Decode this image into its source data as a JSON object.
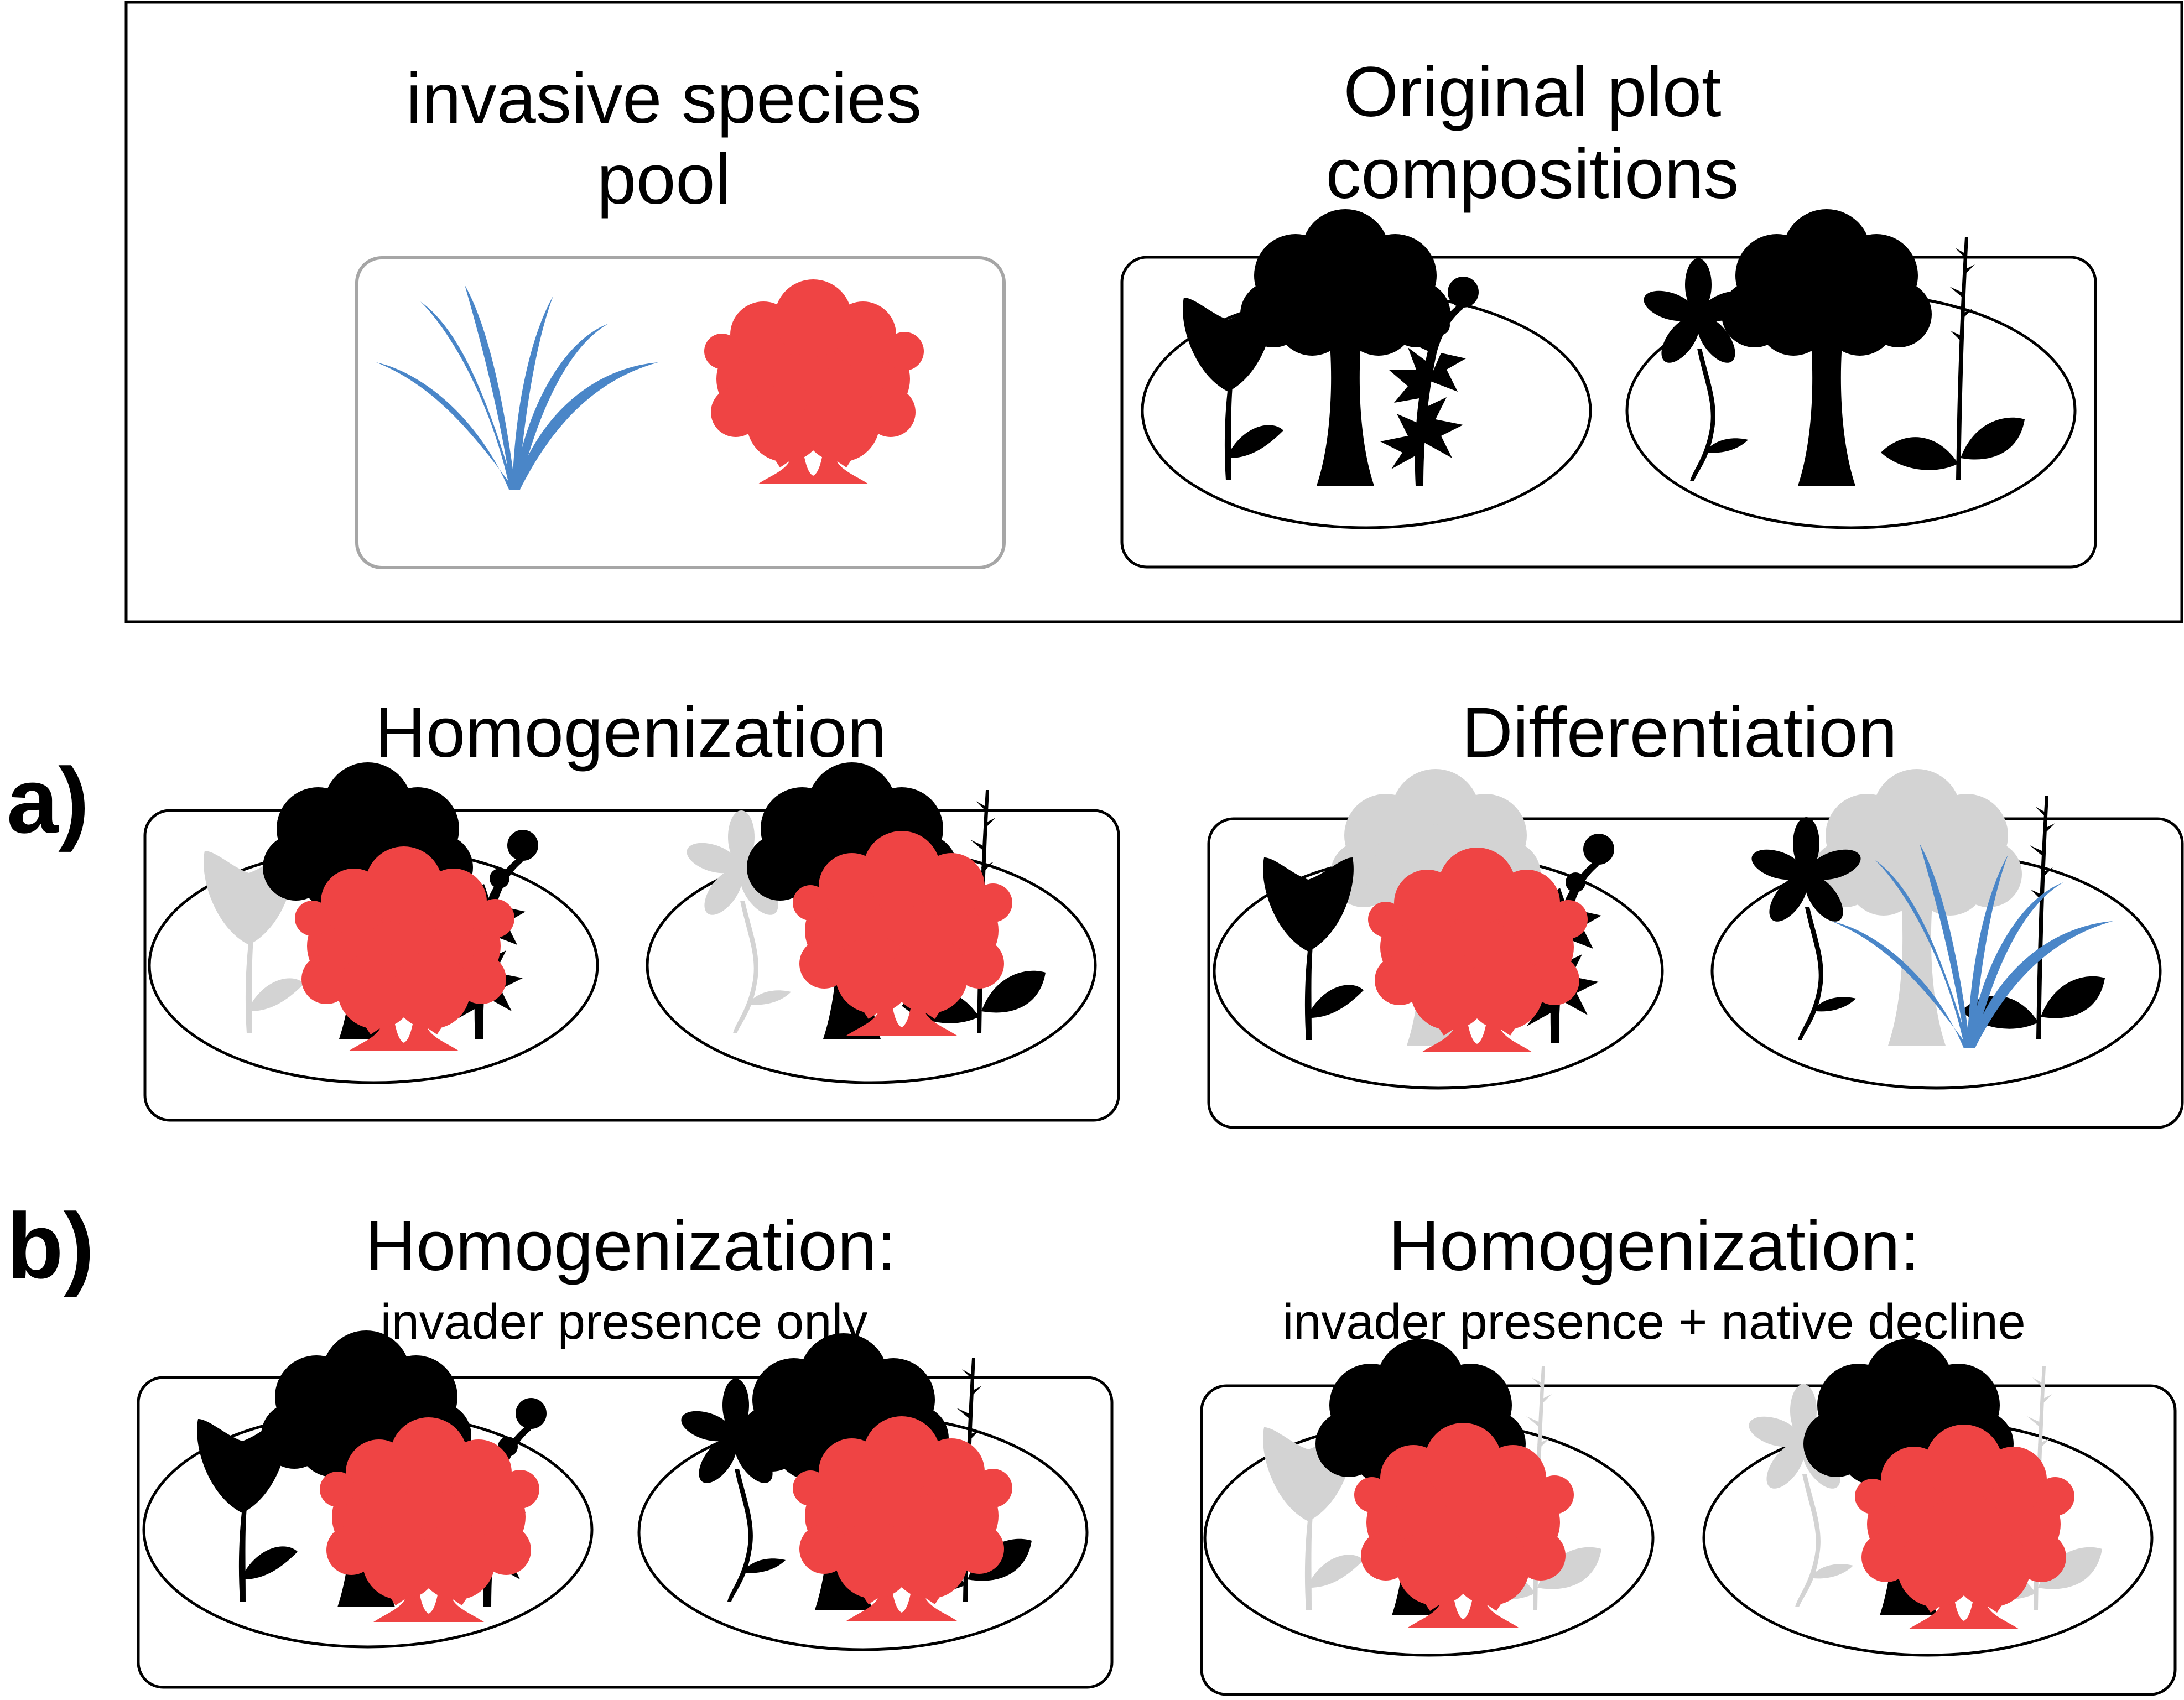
{
  "top": {
    "pool_title": [
      "invasive species",
      "pool"
    ],
    "original_title": [
      "Original plot",
      "compositions"
    ]
  },
  "row_a": {
    "label": "a)",
    "left_title": "Homogenization",
    "right_title": "Differentiation"
  },
  "row_b": {
    "label": "b)",
    "left_title": "Homogenization:",
    "left_subtitle": "invader presence only",
    "right_title": "Homogenization:",
    "right_subtitle": "invader presence + native decline"
  },
  "colors": {
    "native": "#000000",
    "lost_native": "#d3d3d3",
    "invader_shrub": "#ef4444",
    "invader_grass": "#4a86c8",
    "pool_border": "#a6a6a6"
  },
  "icons": [
    "tree-icon",
    "tulip-icon",
    "thistle-icon",
    "daisy-icon",
    "leafy-stem-icon",
    "shrub-icon",
    "grass-icon"
  ]
}
